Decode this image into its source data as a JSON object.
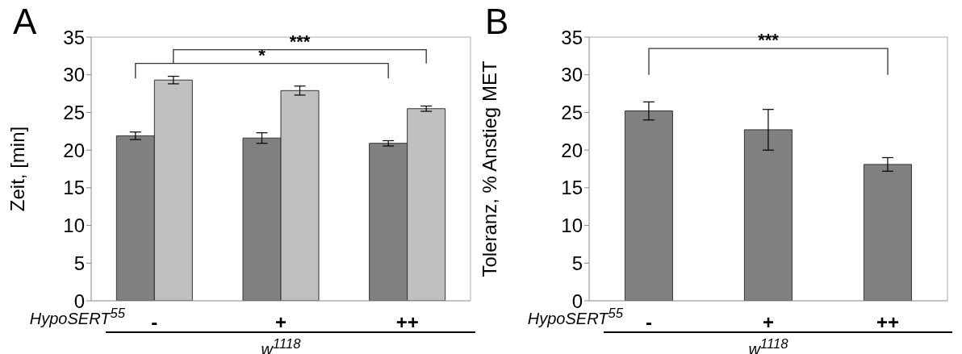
{
  "chart_data": [
    {
      "type": "bar",
      "title": "A",
      "ylabel": "Zeit, [min]",
      "xlabel": "w$^{1118}$",
      "annotations": [
        "HypoSERT$^{55}$",
        "*",
        "***"
      ],
      "categories": [
        "-",
        "+",
        "++"
      ],
      "series": [
        {
          "color": "#808080",
          "values": [
            21.9,
            21.6,
            20.9
          ],
          "errors": [
            0.5,
            0.7,
            0.35
          ]
        },
        {
          "color": "#c0c0c0",
          "values": [
            29.3,
            27.9,
            25.5
          ],
          "errors": [
            0.5,
            0.6,
            0.35
          ]
        }
      ],
      "ylim": [
        0,
        35
      ],
      "yticks": [
        0,
        5,
        10,
        15,
        20,
        25,
        30,
        35
      ],
      "grid": false,
      "legend": false
    },
    {
      "type": "bar",
      "title": "B",
      "ylabel": "Toleranz, % Anstieg MET",
      "xlabel": "w$^{1118}$",
      "annotations": [
        "HypoSERT$^{55}$",
        "***"
      ],
      "categories": [
        "-",
        "+",
        "++"
      ],
      "series": [
        {
          "color": "#808080",
          "values": [
            25.2,
            22.7,
            18.1
          ],
          "errors": [
            1.2,
            2.7,
            0.9
          ]
        }
      ],
      "ylim": [
        0,
        35
      ],
      "yticks": [
        0,
        5,
        10,
        15,
        20,
        25,
        30,
        35
      ],
      "grid": false,
      "legend": false
    }
  ]
}
